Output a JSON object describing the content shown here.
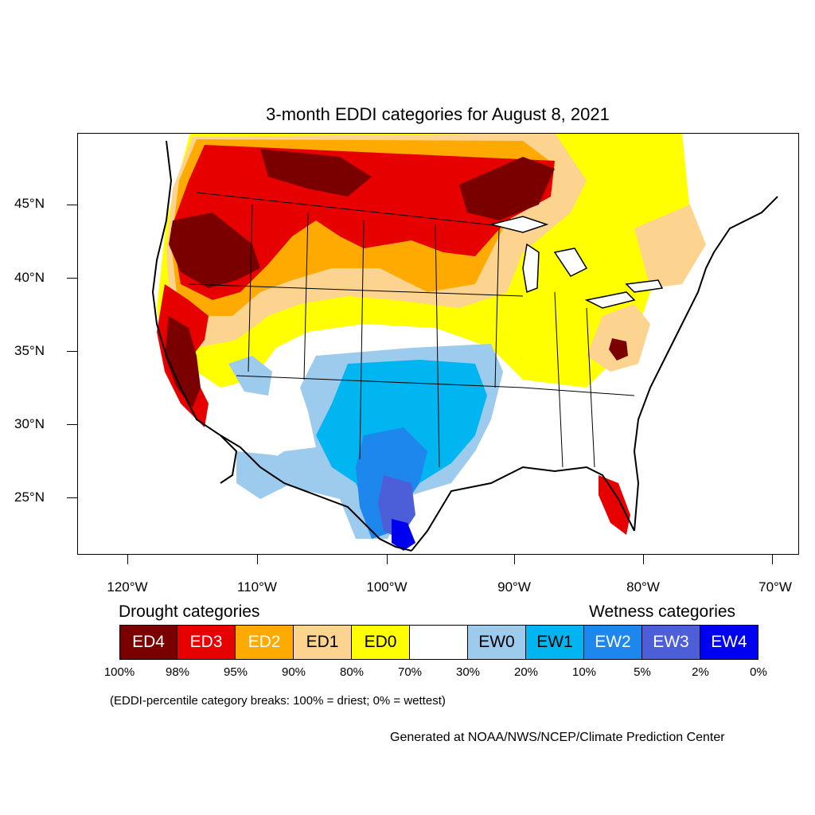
{
  "title": "3-month EDDI categories for August 8, 2021",
  "lat_labels": [
    "45°N",
    "40°N",
    "35°N",
    "30°N",
    "25°N"
  ],
  "lon_labels": [
    "120°W",
    "110°W",
    "100°W",
    "90°W",
    "80°W",
    "70°W"
  ],
  "legend": {
    "drought_heading": "Drought categories",
    "wetness_heading": "Wetness categories",
    "categories": [
      {
        "label": "ED4",
        "color": "#7a0000",
        "text_color": "#ffffff"
      },
      {
        "label": "ED3",
        "color": "#e60000",
        "text_color": "#ffffff"
      },
      {
        "label": "ED2",
        "color": "#ffaa00",
        "text_color": "#ffffff"
      },
      {
        "label": "ED1",
        "color": "#fcd38f",
        "text_color": "#000000"
      },
      {
        "label": "ED0",
        "color": "#ffff00",
        "text_color": "#000000"
      },
      {
        "label": "",
        "color": "#ffffff",
        "text_color": "#000000"
      },
      {
        "label": "EW0",
        "color": "#9ccbee",
        "text_color": "#000000"
      },
      {
        "label": "EW1",
        "color": "#00b5f0",
        "text_color": "#000000"
      },
      {
        "label": "EW2",
        "color": "#1e87ee",
        "text_color": "#ffffff"
      },
      {
        "label": "EW3",
        "color": "#4c5fd8",
        "text_color": "#ffffff"
      },
      {
        "label": "EW4",
        "color": "#0000f0",
        "text_color": "#ffffff"
      }
    ],
    "percentiles": [
      "100%",
      "98%",
      "95%",
      "90%",
      "80%",
      "70%",
      "30%",
      "20%",
      "10%",
      "5%",
      "2%",
      "0%"
    ]
  },
  "note": "(EDDI-percentile category breaks: 100% = driest; 0% = wettest)",
  "credit": "Generated at NOAA/NWS/NCEP/Climate Prediction Center"
}
